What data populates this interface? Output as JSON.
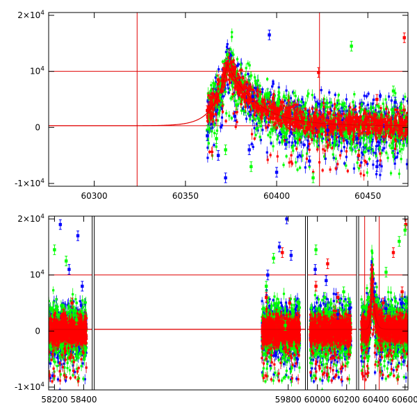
{
  "chart_data": [
    {
      "type": "scatter",
      "panel": "top",
      "xlim": [
        60275,
        60472
      ],
      "ylim": [
        -10500,
        20500
      ],
      "x_ticks": [
        60300,
        60350,
        60400,
        60450
      ],
      "x_tick_labels": [
        "60300",
        "60350",
        "60400",
        "60450"
      ],
      "y_ticks": [
        20000,
        10000,
        0,
        -10000
      ],
      "y_tick_labels": [
        {
          "base": "2×10",
          "exp": "4"
        },
        {
          "base": "10",
          "exp": "4"
        },
        {
          "base": "0",
          "exp": ""
        },
        {
          "base": "-1×10",
          "exp": "4"
        }
      ],
      "hlines": [
        10000,
        300
      ],
      "vlines": [
        60323.5,
        60423.5
      ],
      "model": {
        "t0": 60373,
        "peak": 11000,
        "rise": 7,
        "decay": 16,
        "baseline": 300
      },
      "series": [
        {
          "color": "#ff0000",
          "points": [
            [
              60362,
              3000
            ],
            [
              60365,
              6000
            ],
            [
              60368,
              8500
            ],
            [
              60371,
              10500
            ],
            [
              60373,
              11000
            ],
            [
              60376,
              9500
            ],
            [
              60380,
              7000
            ],
            [
              60385,
              5000
            ],
            [
              60390,
              3500
            ],
            [
              60395,
              2500
            ],
            [
              60400,
              1500
            ],
            [
              60405,
              700
            ],
            [
              60410,
              200
            ],
            [
              60420,
              0
            ],
            [
              60430,
              100
            ],
            [
              60440,
              -300
            ],
            [
              60450,
              -500
            ],
            [
              60460,
              -200
            ],
            [
              60468,
              -600
            ],
            [
              60423,
              9800
            ],
            [
              60470,
              16000
            ],
            [
              60455,
              5000
            ],
            [
              60445,
              -5000
            ]
          ]
        },
        {
          "color": "#00ff00",
          "points": [
            [
              60362,
              -500
            ],
            [
              60367,
              -2000
            ],
            [
              60372,
              -4000
            ],
            [
              60378,
              4000
            ],
            [
              60386,
              -7000
            ],
            [
              60395,
              6000
            ],
            [
              60405,
              -1000
            ],
            [
              60416,
              1200
            ],
            [
              60432,
              -2500
            ],
            [
              60441,
              14500
            ],
            [
              60452,
              -1500
            ],
            [
              60468,
              3500
            ],
            [
              60373,
              13000
            ],
            [
              60420,
              -9000
            ],
            [
              60464,
              6500
            ]
          ]
        },
        {
          "color": "#0000ff",
          "points": [
            [
              60362,
              -1500
            ],
            [
              60368,
              -5000
            ],
            [
              60372,
              -9000
            ],
            [
              60377,
              2000
            ],
            [
              60385,
              -4000
            ],
            [
              60396,
              16500
            ],
            [
              60405,
              -3000
            ],
            [
              60418,
              -6000
            ],
            [
              60428,
              -500
            ],
            [
              60444,
              -2000
            ],
            [
              60455,
              -7000
            ],
            [
              60465,
              4500
            ],
            [
              60387,
              5500
            ],
            [
              60400,
              -8000
            ]
          ]
        }
      ]
    },
    {
      "type": "scatter",
      "panel": "bottom",
      "xlim": [
        58160,
        60620
      ],
      "ylim": [
        -10500,
        20500
      ],
      "x_ticks": [
        58200,
        58400,
        59800,
        60000,
        60200,
        60400,
        60600
      ],
      "x_tick_labels": [
        "58200",
        "58400",
        "59800",
        "60000",
        "60200",
        "60400",
        "60600"
      ],
      "y_ticks": [
        20000,
        10000,
        0,
        -10000
      ],
      "y_tick_labels": [
        {
          "base": "2×10",
          "exp": "4"
        },
        {
          "base": "10",
          "exp": "4"
        },
        {
          "base": "0",
          "exp": ""
        },
        {
          "base": "-1×10",
          "exp": "4"
        }
      ],
      "hlines": [
        10000,
        300
      ],
      "vlines": [
        60323.5,
        60423.5
      ],
      "segments": [
        {
          "from": 58160,
          "to": 58420
        },
        {
          "from": 59620,
          "to": 59880
        },
        {
          "from": 59950,
          "to": 60230
        },
        {
          "from": 60300,
          "to": 60620
        }
      ],
      "model": {
        "t0": 60373,
        "peak": 11000,
        "rise": 7,
        "decay": 16,
        "baseline": 300
      },
      "series": [
        {
          "color": "#ff0000",
          "points": [
            [
              58210,
              1000
            ],
            [
              58260,
              3000
            ],
            [
              58320,
              5000
            ],
            [
              58380,
              2000
            ],
            [
              59650,
              6000
            ],
            [
              59720,
              3000
            ],
            [
              59760,
              14000
            ],
            [
              59810,
              5000
            ],
            [
              59990,
              8000
            ],
            [
              60070,
              12000
            ],
            [
              60140,
              6000
            ],
            [
              60200,
              2000
            ],
            [
              60373,
              11000
            ],
            [
              60450,
              5000
            ],
            [
              60520,
              14000
            ],
            [
              60580,
              7000
            ],
            [
              60605,
              19000
            ]
          ]
        },
        {
          "color": "#00ff00",
          "points": [
            [
              58200,
              14500
            ],
            [
              58280,
              12500
            ],
            [
              58350,
              2000
            ],
            [
              59650,
              8000
            ],
            [
              59700,
              13000
            ],
            [
              59780,
              1000
            ],
            [
              59990,
              14500
            ],
            [
              60050,
              6000
            ],
            [
              60180,
              7000
            ],
            [
              60350,
              6000
            ],
            [
              60470,
              10500
            ],
            [
              60560,
              16000
            ],
            [
              60600,
              18000
            ]
          ]
        },
        {
          "color": "#0000ff",
          "points": [
            [
              58240,
              19000
            ],
            [
              58300,
              11000
            ],
            [
              58360,
              17000
            ],
            [
              58390,
              8000
            ],
            [
              59660,
              10000
            ],
            [
              59740,
              15000
            ],
            [
              59790,
              20000
            ],
            [
              59820,
              13500
            ],
            [
              59985,
              11000
            ],
            [
              60060,
              9000
            ],
            [
              60140,
              3000
            ],
            [
              60220,
              4000
            ],
            [
              60390,
              7000
            ],
            [
              60470,
              4000
            ],
            [
              60580,
              5000
            ]
          ]
        }
      ]
    }
  ]
}
